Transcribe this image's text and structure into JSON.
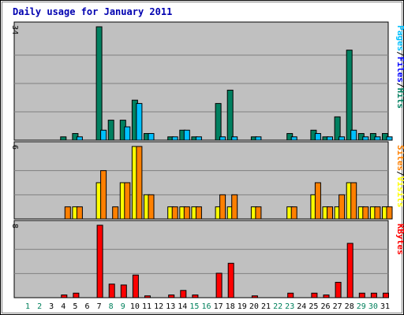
{
  "chart_data": {
    "type": "bar",
    "title": "Daily usage for January 2011",
    "days": [
      "1",
      "2",
      "3",
      "4",
      "5",
      "6",
      "7",
      "8",
      "9",
      "10",
      "11",
      "12",
      "13",
      "14",
      "15",
      "16",
      "17",
      "18",
      "19",
      "20",
      "21",
      "22",
      "23",
      "24",
      "25",
      "26",
      "27",
      "28",
      "29",
      "30",
      "31"
    ],
    "weekend_days": [
      "1",
      "2",
      "8",
      "9",
      "15",
      "16",
      "22",
      "23",
      "29",
      "30"
    ],
    "colors": {
      "hits": "#008060",
      "files": "#00c0ff",
      "pages": "#00c0ff",
      "visits": "#ffff00",
      "sites": "#ff8000",
      "kbytes": "#ff0000",
      "weekday_label": "#000000",
      "weekend_label": "#00805c",
      "panel_bg": "#c0c0c0",
      "title": "#0000b0"
    },
    "panels": [
      {
        "ymax": "34",
        "ymax_value": 34,
        "legend": [
          {
            "text": "Hits",
            "color": "#008060"
          },
          {
            "text": "/",
            "color": "#000000"
          },
          {
            "text": "Files",
            "color": "#0000ff"
          },
          {
            "text": "/",
            "color": "#000000"
          },
          {
            "text": "Pages",
            "color": "#00c0ff"
          }
        ],
        "series": [
          {
            "name": "Hits",
            "color": "#008060",
            "values": [
              0,
              0,
              0,
              1,
              2,
              0,
              34,
              6,
              6,
              12,
              2,
              0,
              1,
              3,
              1,
              0,
              11,
              15,
              0,
              1,
              0,
              0,
              2,
              0,
              3,
              1,
              7,
              27,
              2,
              2,
              2
            ]
          },
          {
            "name": "Files",
            "color": "#00c0ff",
            "values": [
              0,
              0,
              0,
              0,
              1,
              0,
              3,
              0,
              4,
              11,
              2,
              0,
              1,
              3,
              1,
              0,
              1,
              1,
              0,
              1,
              0,
              0,
              1,
              0,
              2,
              1,
              1,
              3,
              1,
              1,
              1
            ]
          }
        ]
      },
      {
        "ymax": "6",
        "ymax_value": 6,
        "legend": [
          {
            "text": "Visits",
            "color": "#ffff00"
          },
          {
            "text": "/",
            "color": "#000000"
          },
          {
            "text": "Sites",
            "color": "#ff8000"
          }
        ],
        "series": [
          {
            "name": "Visits",
            "color": "#ffff00",
            "values": [
              0,
              0,
              0,
              0,
              1,
              0,
              3,
              0,
              3,
              6,
              2,
              0,
              1,
              1,
              1,
              0,
              1,
              1,
              0,
              1,
              0,
              0,
              1,
              0,
              2,
              1,
              1,
              3,
              1,
              1,
              1
            ]
          },
          {
            "name": "Sites",
            "color": "#ff8000",
            "values": [
              0,
              0,
              0,
              1,
              1,
              0,
              4,
              1,
              3,
              6,
              2,
              0,
              1,
              1,
              1,
              0,
              2,
              2,
              0,
              1,
              0,
              0,
              1,
              0,
              3,
              1,
              2,
              3,
              1,
              1,
              1
            ]
          }
        ]
      },
      {
        "ymax": "8",
        "ymax_value": 8,
        "legend": [
          {
            "text": "KBytes",
            "color": "#ff0000"
          }
        ],
        "series": [
          {
            "name": "KBytes",
            "color": "#ff0000",
            "values": [
              0,
              0,
              0,
              0.3,
              0.5,
              0,
              8,
              1.5,
              1.4,
              2.5,
              0.2,
              0,
              0.3,
              0.8,
              0.3,
              0,
              2.7,
              3.8,
              0,
              0.2,
              0,
              0,
              0.5,
              0,
              0.5,
              0.3,
              1.7,
              6,
              0.5,
              0.5,
              0.5
            ]
          }
        ]
      }
    ]
  }
}
